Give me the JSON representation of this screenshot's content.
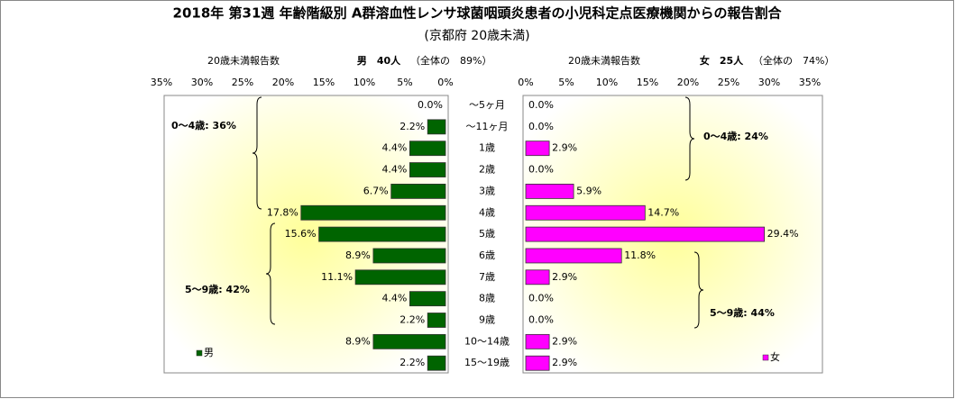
{
  "chart_data": {
    "type": "bar",
    "orientation": "horizontal-butterfly",
    "title": "2018年 第31週 年齢階級別 A群溶血性レンサ球菌咽頭炎患者の小児科定点医療機関からの報告割合",
    "subtitle": "(京都府 20歳未満)",
    "categories": [
      "～5ヶ月",
      "～11ヶ月",
      "1歳",
      "2歳",
      "3歳",
      "4歳",
      "5歳",
      "6歳",
      "7歳",
      "8歳",
      "9歳",
      "10～14歳",
      "15～19歳"
    ],
    "xlim": [
      0,
      35
    ],
    "xticks": [
      {
        "value": 0,
        "label": "0%"
      },
      {
        "value": 5,
        "label": "5%"
      },
      {
        "value": 10,
        "label": "10%"
      },
      {
        "value": 15,
        "label": "15%"
      },
      {
        "value": 20,
        "label": "20%"
      },
      {
        "value": 25,
        "label": "25%"
      },
      {
        "value": 30,
        "label": "30%"
      },
      {
        "value": 35,
        "label": "35%"
      }
    ],
    "grid": false,
    "series": [
      {
        "name": "男",
        "color": "#006400",
        "side": "left",
        "header_label": "20歳未満報告数",
        "header": "男　40人",
        "header_note": "（全体の　89%）",
        "values": [
          0.0,
          2.2,
          4.4,
          4.4,
          6.7,
          17.8,
          15.6,
          8.9,
          11.1,
          4.4,
          2.2,
          8.9,
          2.2
        ],
        "value_labels": [
          "0.0%",
          "2.2%",
          "4.4%",
          "4.4%",
          "6.7%",
          "17.8%",
          "15.6%",
          "8.9%",
          "11.1%",
          "4.4%",
          "2.2%",
          "8.9%",
          "2.2%"
        ],
        "annotations": [
          "0～4歳: 36%",
          "5～9歳: 42%"
        ]
      },
      {
        "name": "女",
        "color": "#ff00ff",
        "side": "right",
        "header_label": "20歳未満報告数",
        "header": "女　25人",
        "header_note": "（全体の　74%）",
        "values": [
          0.0,
          0.0,
          2.9,
          0.0,
          5.9,
          14.7,
          29.4,
          11.8,
          2.9,
          0.0,
          0.0,
          2.9,
          2.9
        ],
        "value_labels": [
          "0.0%",
          "0.0%",
          "2.9%",
          "0.0%",
          "5.9%",
          "14.7%",
          "29.4%",
          "11.8%",
          "2.9%",
          "0.0%",
          "0.0%",
          "2.9%",
          "2.9%"
        ],
        "annotations": [
          "0～4歳: 24%",
          "5～9歳: 44%"
        ]
      }
    ]
  }
}
